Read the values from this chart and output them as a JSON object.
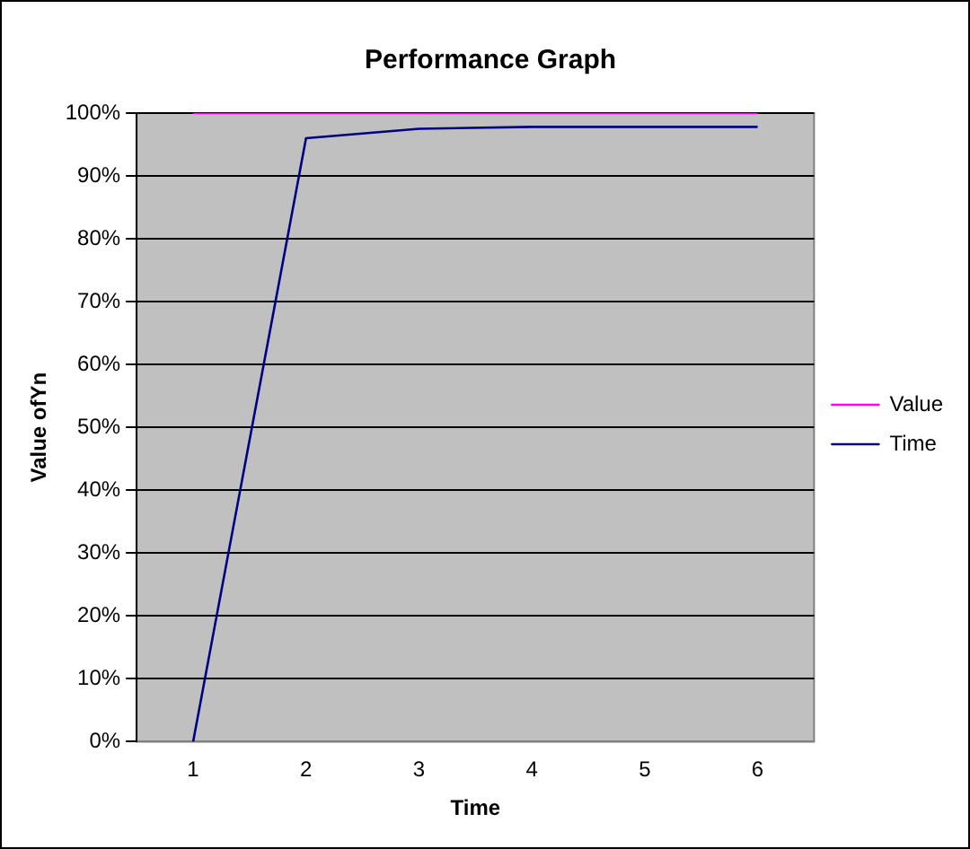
{
  "chart_data": {
    "type": "line",
    "title": "Performance Graph",
    "xlabel": "Time",
    "ylabel": "Value ofYn",
    "categories": [
      "1",
      "2",
      "3",
      "4",
      "5",
      "6"
    ],
    "series": [
      {
        "name": "Value",
        "color": "#ff00ff",
        "values": [
          100,
          100,
          100,
          100,
          100,
          100
        ]
      },
      {
        "name": "Time",
        "color": "#000080",
        "values": [
          0,
          96,
          97.5,
          97.8,
          97.8,
          97.8
        ]
      }
    ],
    "ylim": [
      0,
      100
    ],
    "yticks": [
      {
        "value": 0,
        "label": "0%"
      },
      {
        "value": 10,
        "label": "10%"
      },
      {
        "value": 20,
        "label": "20%"
      },
      {
        "value": 30,
        "label": "30%"
      },
      {
        "value": 40,
        "label": "40%"
      },
      {
        "value": 50,
        "label": "50%"
      },
      {
        "value": 60,
        "label": "60%"
      },
      {
        "value": 70,
        "label": "70%"
      },
      {
        "value": 80,
        "label": "80%"
      },
      {
        "value": 90,
        "label": "90%"
      },
      {
        "value": 100,
        "label": "100%"
      }
    ],
    "grid": "y",
    "legend": "right",
    "marker": "none",
    "line_style": "solid"
  }
}
